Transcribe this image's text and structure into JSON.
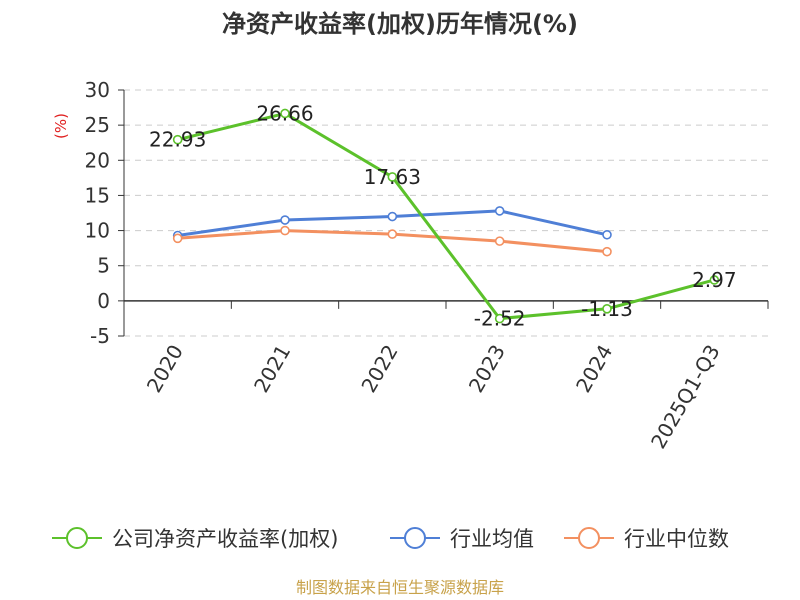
{
  "chart_data": {
    "type": "line",
    "title": "净资产收益率(加权)历年情况(%)",
    "ylabel": "(%)",
    "categories": [
      "2020",
      "2021",
      "2022",
      "2023",
      "2024",
      "2025Q1-Q3"
    ],
    "ylim": [
      -5,
      30
    ],
    "yticks": [
      30,
      25,
      20,
      15,
      10,
      5,
      0,
      -5
    ],
    "grid": true,
    "legend_position": "bottom",
    "series": [
      {
        "name": "公司净资产收益率(加权)",
        "color": "#5cc12b",
        "values": [
          22.93,
          26.66,
          17.63,
          -2.52,
          -1.13,
          2.97
        ],
        "labels": [
          "22.93",
          "26.66",
          "17.63",
          "-2.52",
          "-1.13",
          "2.97"
        ]
      },
      {
        "name": "行业均值",
        "color": "#4f7fd6",
        "values": [
          9.3,
          11.5,
          12.0,
          12.8,
          9.4,
          null
        ]
      },
      {
        "name": "行业中位数",
        "color": "#f39060",
        "values": [
          8.9,
          10.0,
          9.5,
          8.5,
          7.0,
          null
        ]
      }
    ]
  },
  "source": "制图数据来自恒生聚源数据库"
}
